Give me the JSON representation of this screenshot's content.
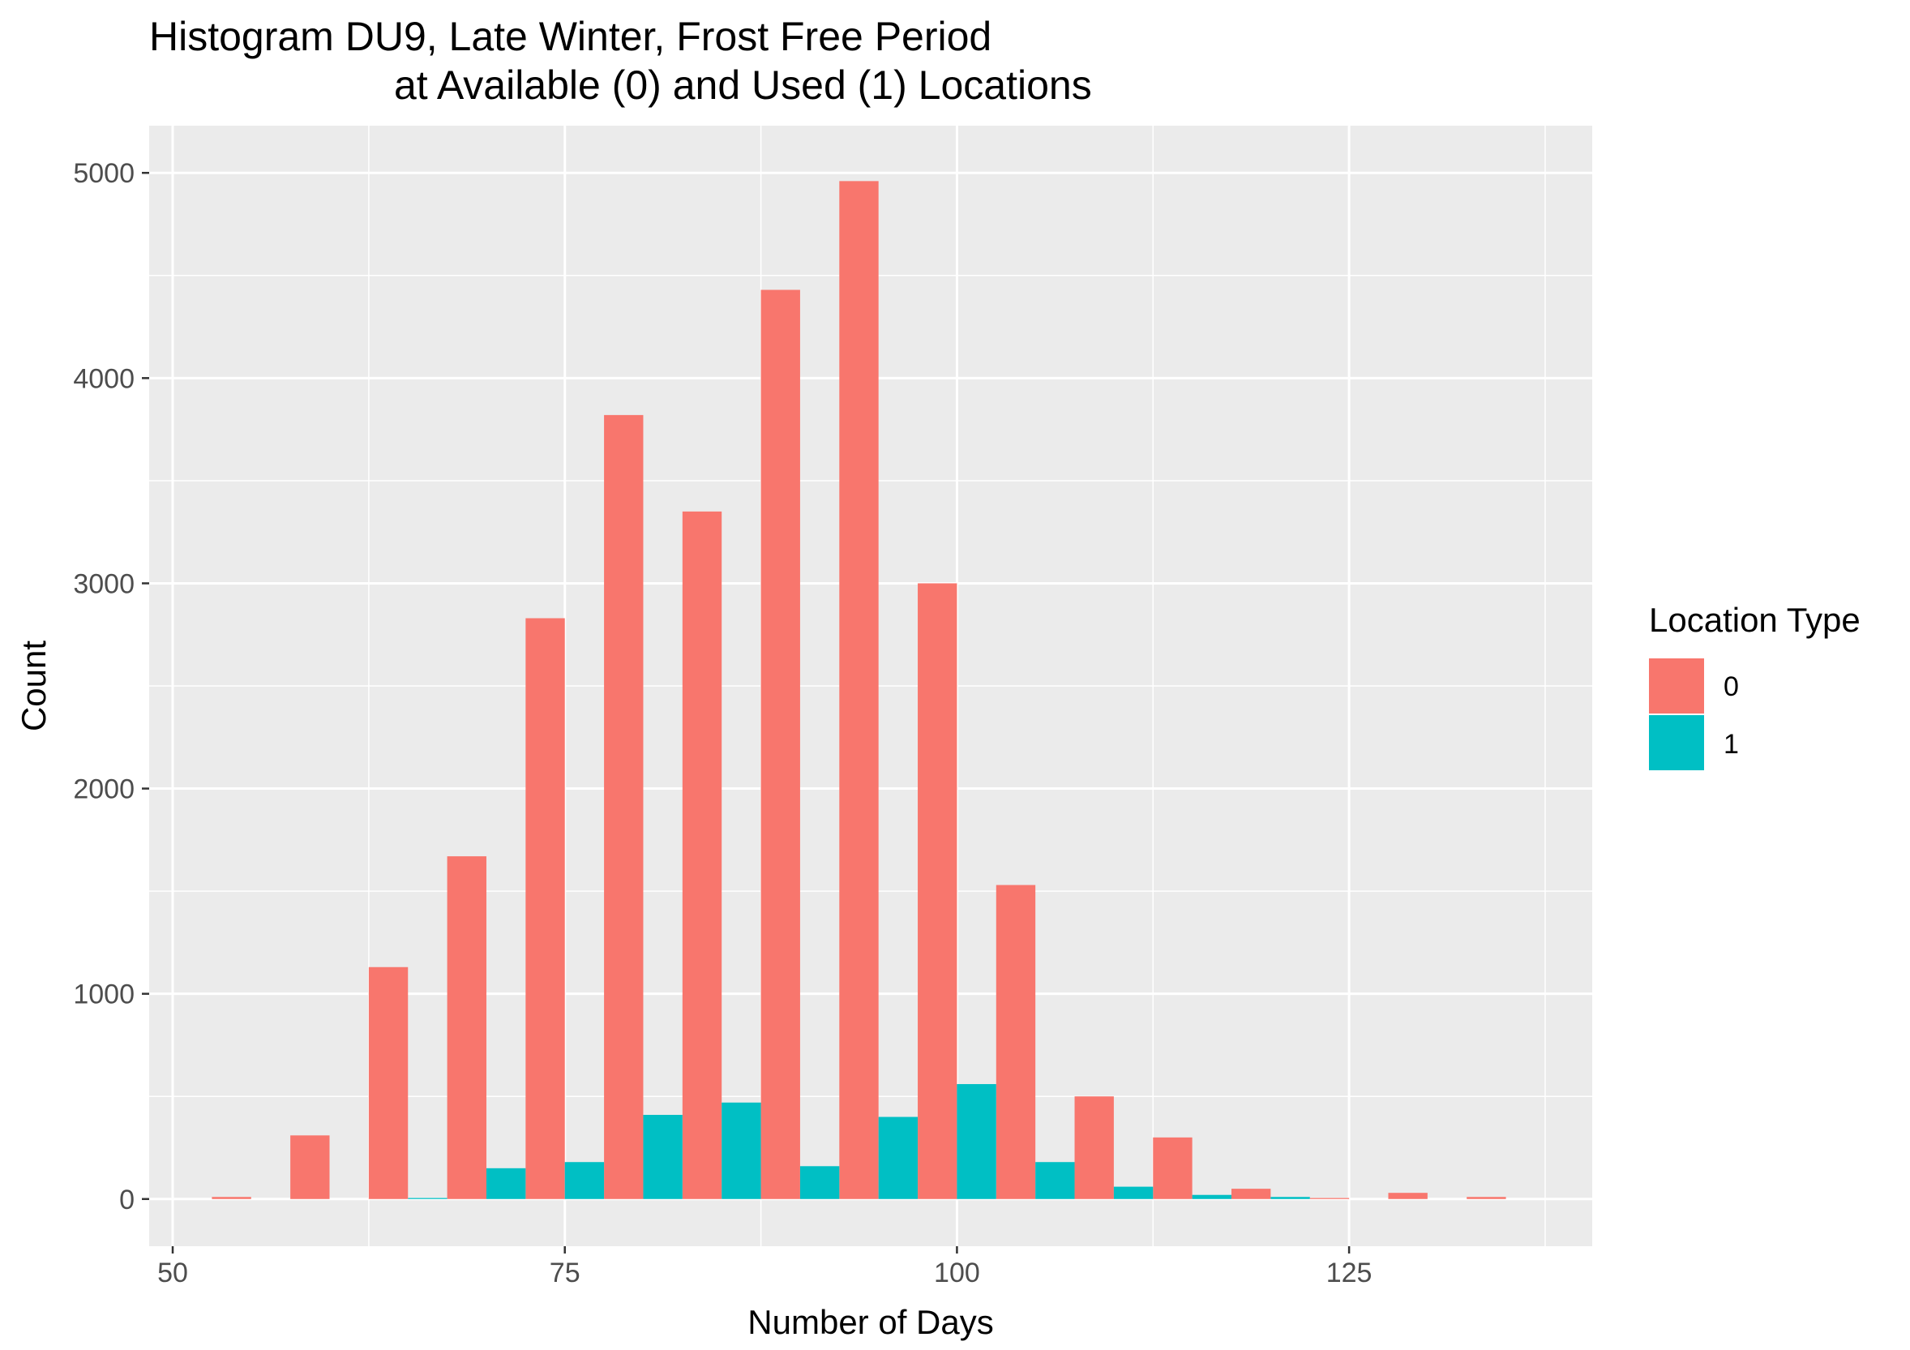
{
  "chart_data": {
    "type": "bar",
    "title_lines": [
      "Histogram DU9, Late Winter, Frost Free Period",
      "at Available (0) and Used (1) Locations"
    ],
    "xlabel": "Number of Days",
    "ylabel": "Count",
    "xlim": [
      48.5,
      140.5
    ],
    "ylim": [
      -230,
      5230
    ],
    "x_ticks": [
      50,
      75,
      100,
      125
    ],
    "x_tick_labels": [
      "50",
      "75",
      "100",
      "125"
    ],
    "y_ticks": [
      0,
      1000,
      2000,
      3000,
      4000,
      5000
    ],
    "y_tick_labels": [
      "0",
      "1000",
      "2000",
      "3000",
      "4000",
      "5000"
    ],
    "bin_width": 5,
    "bin_centers": [
      55,
      60,
      65,
      70,
      75,
      80,
      85,
      90,
      95,
      100,
      105,
      110,
      115,
      120,
      125,
      130,
      135
    ],
    "grid": true,
    "legend_position": "right",
    "legend_title": "Location Type",
    "series": [
      {
        "name": "0",
        "color": "#F8766D",
        "values": [
          10,
          310,
          1130,
          1670,
          2830,
          3820,
          3350,
          4430,
          4960,
          3000,
          1530,
          500,
          300,
          50,
          5,
          30,
          10
        ]
      },
      {
        "name": "1",
        "color": "#00BFC4",
        "values": [
          0,
          0,
          5,
          150,
          180,
          410,
          470,
          160,
          400,
          560,
          180,
          60,
          20,
          10,
          0,
          0,
          0
        ]
      }
    ]
  }
}
